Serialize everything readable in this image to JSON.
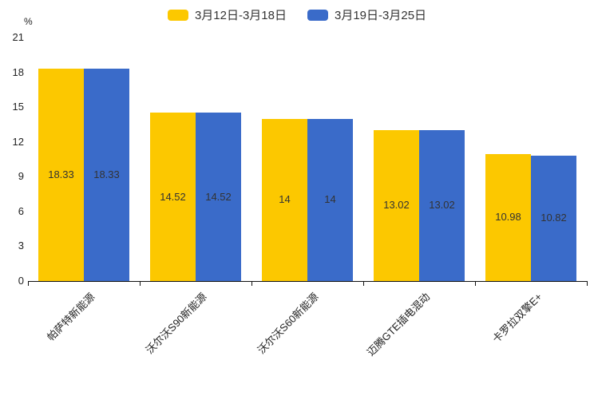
{
  "legend": {
    "items": [
      {
        "label": "3月12日-3月18日",
        "color": "#FCC800"
      },
      {
        "label": "3月19日-3月25日",
        "color": "#3A6BC9"
      }
    ]
  },
  "chart_data": {
    "type": "bar",
    "title": "",
    "unit_label": "%",
    "categories": [
      "帕萨特新能源",
      "沃尔沃S90新能源",
      "沃尔沃S60新能源",
      "迈腾GTE插电混动",
      "卡罗拉双擎E+"
    ],
    "series": [
      {
        "name": "3月12日-3月18日",
        "color": "#FCC800",
        "values": [
          18.33,
          14.52,
          14,
          13.02,
          10.98
        ]
      },
      {
        "name": "3月19日-3月25日",
        "color": "#3A6BC9",
        "values": [
          18.33,
          14.52,
          14,
          13.02,
          10.82
        ]
      }
    ],
    "xlabel": "",
    "ylabel": "%",
    "ylim": [
      0,
      21
    ],
    "yticks": [
      0,
      3,
      6,
      9,
      12,
      15,
      18,
      21
    ],
    "grid": false,
    "legend_position": "top",
    "value_labels_shown": true
  }
}
